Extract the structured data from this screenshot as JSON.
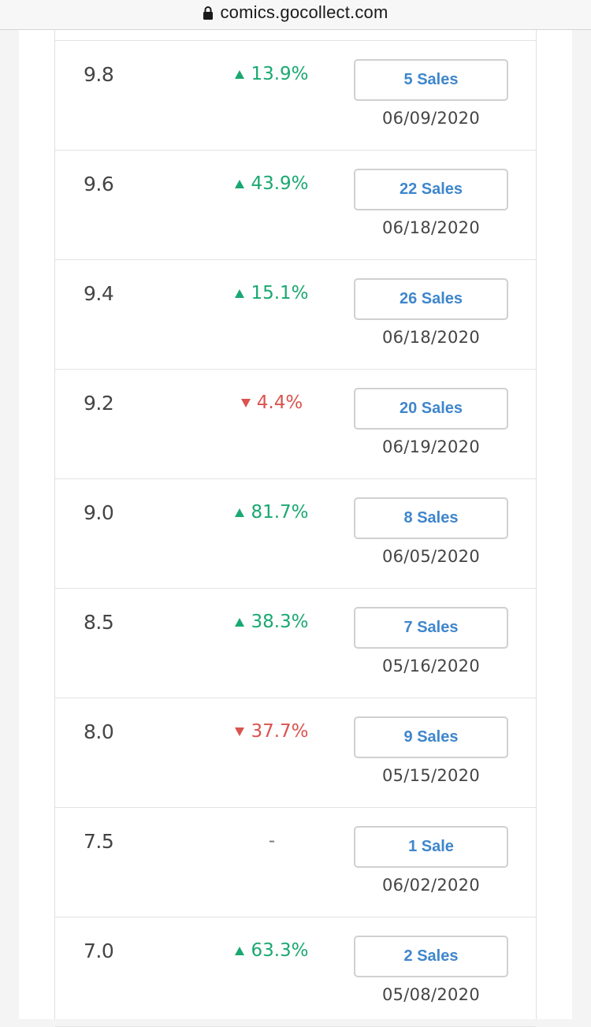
{
  "browser": {
    "url": "comics.gocollect.com"
  },
  "rows": [
    {
      "grade": "9.8",
      "direction": "up",
      "change": "13.9%",
      "sales": "5 Sales",
      "date": "06/09/2020"
    },
    {
      "grade": "9.6",
      "direction": "up",
      "change": "43.9%",
      "sales": "22 Sales",
      "date": "06/18/2020"
    },
    {
      "grade": "9.4",
      "direction": "up",
      "change": "15.1%",
      "sales": "26 Sales",
      "date": "06/18/2020"
    },
    {
      "grade": "9.2",
      "direction": "down",
      "change": "4.4%",
      "sales": "20 Sales",
      "date": "06/19/2020"
    },
    {
      "grade": "9.0",
      "direction": "up",
      "change": "81.7%",
      "sales": "8 Sales",
      "date": "06/05/2020"
    },
    {
      "grade": "8.5",
      "direction": "up",
      "change": "38.3%",
      "sales": "7 Sales",
      "date": "05/16/2020"
    },
    {
      "grade": "8.0",
      "direction": "down",
      "change": "37.7%",
      "sales": "9 Sales",
      "date": "05/15/2020"
    },
    {
      "grade": "7.5",
      "direction": "none",
      "change": "-",
      "sales": "1 Sale",
      "date": "06/02/2020"
    },
    {
      "grade": "7.0",
      "direction": "up",
      "change": "63.3%",
      "sales": "2 Sales",
      "date": "05/08/2020"
    }
  ],
  "colors": {
    "up": "#1aa871",
    "down": "#d9534f",
    "link": "#3e86cc"
  },
  "icons": {
    "lock": "lock-icon",
    "up": "triangle-up-icon",
    "down": "triangle-down-icon"
  }
}
